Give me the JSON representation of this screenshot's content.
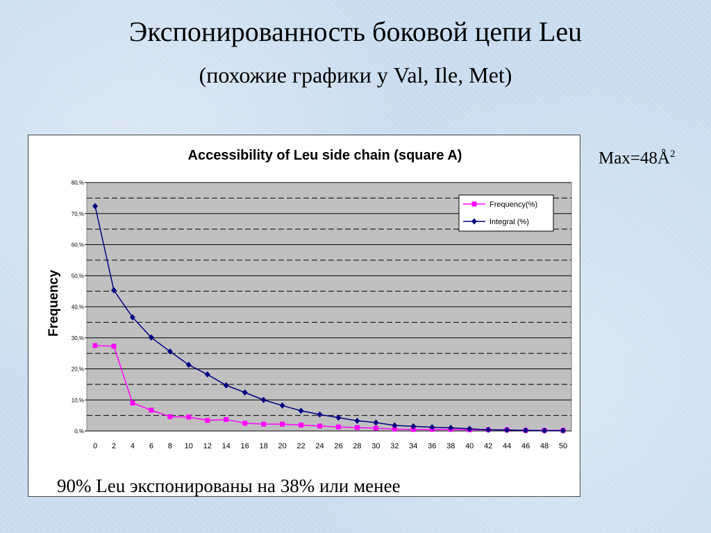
{
  "slide": {
    "title": "Экспонированность боковой цепи Leu",
    "subtitle": "(похожие графики у Val, Ile, Met)",
    "max_note": "Max=48Å",
    "max_note_sup": "2",
    "footnote": "90% Leu  экспонированы на 38%  или менее"
  },
  "chart_data": {
    "type": "line",
    "title": "Accessibility of Leu side chain (square A)",
    "xlabel": "",
    "ylabel": "Frequency",
    "x": [
      0,
      2,
      4,
      6,
      8,
      10,
      12,
      14,
      16,
      18,
      20,
      22,
      24,
      26,
      28,
      30,
      32,
      34,
      36,
      38,
      40,
      42,
      44,
      46,
      48,
      50
    ],
    "xlim": [
      0,
      50
    ],
    "ylim": [
      0,
      80
    ],
    "ytick_values": [
      0,
      10,
      20,
      30,
      40,
      50,
      60,
      70,
      80
    ],
    "ytick_labels": [
      "0,%",
      "10,%",
      "20,%",
      "30,%",
      "40,%",
      "50,%",
      "60,%",
      "70,%",
      "80,%"
    ],
    "xtick_labels": [
      "0",
      "2",
      "4",
      "6",
      "8",
      "10",
      "12",
      "14",
      "16",
      "18",
      "20",
      "22",
      "24",
      "26",
      "28",
      "30",
      "32",
      "34",
      "36",
      "38",
      "40",
      "42",
      "44",
      "46",
      "48",
      "50"
    ],
    "grid": true,
    "plot_background": "#c0c0c0",
    "legend_position": "top-right",
    "series": [
      {
        "name": "Frequency(%)",
        "color": "#ff00ff",
        "marker": "square",
        "values": [
          27.5,
          27.3,
          9.0,
          6.7,
          4.6,
          4.5,
          3.4,
          3.7,
          2.5,
          2.2,
          2.2,
          1.9,
          1.6,
          1.3,
          1.1,
          0.9,
          0.6,
          0.5,
          0.5,
          0.5,
          0.4,
          0.4,
          0.4,
          0.2,
          0.2,
          0.2
        ]
      },
      {
        "name": "Integral (%)",
        "color": "#000080",
        "marker": "diamond",
        "values": [
          72.4,
          45.3,
          36.6,
          30.1,
          25.6,
          21.3,
          18.2,
          14.7,
          12.4,
          10.0,
          8.2,
          6.5,
          5.3,
          4.3,
          3.3,
          2.7,
          1.8,
          1.5,
          1.2,
          1.0,
          0.7,
          0.4,
          0.3,
          0.2,
          0.1,
          0.1
        ]
      }
    ]
  }
}
